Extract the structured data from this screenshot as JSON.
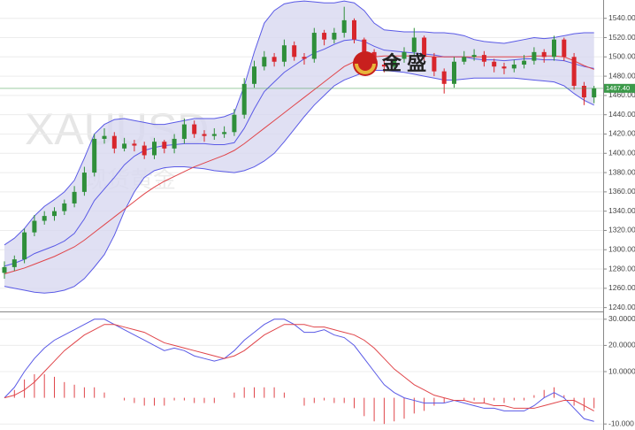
{
  "chart_data": [
    {
      "type": "candlestick",
      "open": [
        1276,
        1282,
        1290,
        1318,
        1330,
        1335,
        1340,
        1348,
        1360,
        1380,
        1415,
        1418,
        1405,
        1410,
        1408,
        1398,
        1412,
        1405,
        1415,
        1430,
        1420,
        1418,
        1420,
        1422,
        1440,
        1472,
        1490,
        1500,
        1495,
        1512,
        1500,
        1498,
        1525,
        1518,
        1525,
        1538,
        1518,
        1505,
        1492,
        1490,
        1498,
        1505,
        1520,
        1500,
        1485,
        1472,
        1495,
        1500,
        1502,
        1495,
        1490,
        1488,
        1492,
        1496,
        1505,
        1500,
        1518,
        1500,
        1470,
        1458
      ],
      "high": [
        1288,
        1294,
        1322,
        1336,
        1340,
        1344,
        1352,
        1366,
        1386,
        1420,
        1426,
        1422,
        1416,
        1414,
        1412,
        1416,
        1414,
        1420,
        1436,
        1434,
        1424,
        1426,
        1428,
        1446,
        1478,
        1496,
        1506,
        1504,
        1518,
        1516,
        1504,
        1530,
        1528,
        1530,
        1552,
        1540,
        1520,
        1508,
        1496,
        1502,
        1510,
        1530,
        1522,
        1504,
        1488,
        1500,
        1506,
        1508,
        1506,
        1498,
        1494,
        1497,
        1502,
        1510,
        1508,
        1522,
        1520,
        1504,
        1474,
        1470
      ],
      "low": [
        1270,
        1278,
        1286,
        1314,
        1326,
        1330,
        1336,
        1344,
        1356,
        1376,
        1410,
        1400,
        1402,
        1402,
        1394,
        1394,
        1400,
        1400,
        1410,
        1416,
        1412,
        1414,
        1416,
        1418,
        1436,
        1468,
        1486,
        1490,
        1490,
        1496,
        1492,
        1494,
        1512,
        1514,
        1520,
        1514,
        1500,
        1486,
        1484,
        1486,
        1494,
        1500,
        1496,
        1480,
        1462,
        1468,
        1492,
        1496,
        1490,
        1484,
        1482,
        1484,
        1488,
        1492,
        1494,
        1496,
        1496,
        1466,
        1450,
        1452
      ],
      "close": [
        1282,
        1290,
        1318,
        1330,
        1335,
        1340,
        1348,
        1360,
        1380,
        1415,
        1418,
        1405,
        1410,
        1408,
        1398,
        1412,
        1405,
        1415,
        1430,
        1420,
        1418,
        1420,
        1422,
        1440,
        1472,
        1490,
        1500,
        1495,
        1512,
        1500,
        1498,
        1525,
        1518,
        1525,
        1538,
        1518,
        1505,
        1492,
        1490,
        1498,
        1505,
        1520,
        1500,
        1485,
        1472,
        1495,
        1500,
        1502,
        1495,
        1490,
        1488,
        1492,
        1496,
        1505,
        1500,
        1518,
        1500,
        1470,
        1458,
        1467.4
      ],
      "up_color": "#2f8f3a",
      "down_color": "#d8262c",
      "series": [
        {
          "color": "#5a5ae6",
          "values": [
            1305,
            1312,
            1322,
            1335,
            1345,
            1352,
            1360,
            1372,
            1395,
            1420,
            1430,
            1435,
            1436,
            1434,
            1432,
            1430,
            1430,
            1432,
            1434,
            1436,
            1436,
            1436,
            1438,
            1442,
            1470,
            1505,
            1535,
            1548,
            1555,
            1557,
            1558,
            1557,
            1556,
            1556,
            1558,
            1556,
            1548,
            1535,
            1528,
            1527,
            1526,
            1526,
            1526,
            1525,
            1525,
            1524,
            1522,
            1518,
            1516,
            1515,
            1514,
            1516,
            1518,
            1520,
            1519,
            1520,
            1522,
            1524,
            1525,
            1525
          ]
        },
        {
          "color": "#5a5ae6",
          "values": [
            1283,
            1286,
            1290,
            1296,
            1300,
            1304,
            1309,
            1317,
            1332,
            1351,
            1363,
            1375,
            1388,
            1397,
            1403,
            1406,
            1408,
            1409,
            1410,
            1410,
            1410,
            1409,
            1409,
            1411,
            1426,
            1446,
            1464,
            1474,
            1484,
            1491,
            1498,
            1504,
            1508,
            1513,
            1517,
            1518,
            1516,
            1511,
            1507,
            1506,
            1505,
            1504,
            1503,
            1502,
            1500,
            1500,
            1500,
            1498,
            1497,
            1497,
            1496,
            1497,
            1498,
            1498,
            1497,
            1497,
            1496,
            1493,
            1490,
            1488
          ]
        },
        {
          "color": "#5a5ae6",
          "values": [
            1262,
            1260,
            1258,
            1256,
            1255,
            1256,
            1258,
            1262,
            1270,
            1282,
            1295,
            1315,
            1340,
            1360,
            1375,
            1382,
            1385,
            1386,
            1386,
            1385,
            1384,
            1382,
            1381,
            1380,
            1382,
            1386,
            1392,
            1400,
            1412,
            1425,
            1438,
            1450,
            1460,
            1470,
            1476,
            1480,
            1484,
            1486,
            1486,
            1485,
            1484,
            1482,
            1480,
            1478,
            1476,
            1476,
            1477,
            1478,
            1478,
            1478,
            1478,
            1478,
            1477,
            1476,
            1475,
            1474,
            1470,
            1462,
            1455,
            1450
          ]
        },
        {
          "color": "#e0454a",
          "values": [
            1275,
            1278,
            1281,
            1285,
            1289,
            1293,
            1298,
            1303,
            1310,
            1318,
            1326,
            1334,
            1342,
            1350,
            1358,
            1365,
            1371,
            1376,
            1381,
            1386,
            1390,
            1394,
            1398,
            1403,
            1410,
            1418,
            1426,
            1434,
            1442,
            1450,
            1458,
            1466,
            1474,
            1482,
            1490,
            1495,
            1498,
            1500,
            1501,
            1501,
            1501,
            1501,
            1501,
            1500,
            1500,
            1500,
            1500,
            1500,
            1500,
            1500,
            1500,
            1500,
            1500,
            1501,
            1501,
            1501,
            1500,
            1496,
            1491,
            1487
          ]
        }
      ],
      "band_fill": "#d8d8f0",
      "ylim": [
        1236,
        1559
      ],
      "yticks": [
        {
          "value": 1240,
          "label": "1240.00"
        },
        {
          "value": 1260,
          "label": "1260.00"
        },
        {
          "value": 1280,
          "label": "1280.00"
        },
        {
          "value": 1300,
          "label": "1300.00"
        },
        {
          "value": 1320,
          "label": "1320.00"
        },
        {
          "value": 1340,
          "label": "1340.00"
        },
        {
          "value": 1360,
          "label": "1360.00"
        },
        {
          "value": 1380,
          "label": "1380.00"
        },
        {
          "value": 1400,
          "label": "1400.00"
        },
        {
          "value": 1420,
          "label": "1420.00"
        },
        {
          "value": 1440,
          "label": "1440.00"
        },
        {
          "value": 1460,
          "label": "1460.00"
        },
        {
          "value": 1480,
          "label": "1480.00"
        },
        {
          "value": 1500,
          "label": "1500.00"
        },
        {
          "value": 1520,
          "label": "1520.00"
        },
        {
          "value": 1540,
          "label": "1540.00"
        }
      ],
      "last_price": {
        "value": 1467.4,
        "label": "1467.40",
        "color": "#3c9a4a"
      },
      "grid": true
    },
    {
      "type": "macd",
      "series": [
        {
          "color": "#5a5ae6",
          "values": [
            0,
            4,
            10,
            15,
            19,
            22,
            24,
            26,
            28,
            30,
            30,
            28,
            26,
            24,
            22,
            20,
            18,
            19,
            18,
            16,
            15,
            14,
            15,
            18,
            22,
            25,
            28,
            30,
            30,
            28,
            25,
            25,
            26,
            24,
            23,
            20,
            15,
            10,
            5,
            2,
            0,
            -1,
            -2,
            -2,
            -2,
            -1,
            -2,
            -3,
            -4,
            -4,
            -5,
            -5,
            -5,
            -3,
            0,
            2,
            0,
            -4,
            -8,
            -9
          ]
        },
        {
          "color": "#e0454a",
          "values": [
            0,
            1,
            3,
            6,
            10,
            14,
            18,
            21,
            24,
            26,
            28,
            28,
            27,
            26,
            25,
            23,
            21,
            20,
            19,
            18,
            17,
            16,
            15,
            16,
            18,
            21,
            24,
            26,
            28,
            28,
            28,
            27,
            27,
            26,
            25,
            24,
            22,
            19,
            15,
            11,
            8,
            5,
            3,
            1,
            0,
            -1,
            -1,
            -2,
            -2,
            -3,
            -3,
            -4,
            -4,
            -4,
            -3,
            -2,
            -1,
            -1,
            -3,
            -5
          ]
        }
      ],
      "histogram": {
        "color": "#e0454a",
        "values": [
          0,
          3,
          7,
          9,
          9,
          8,
          6,
          5,
          4,
          4,
          2,
          0,
          -1,
          -2,
          -3,
          -3,
          -3,
          -1,
          -1,
          -2,
          -2,
          -2,
          0,
          2,
          4,
          4,
          4,
          4,
          2,
          0,
          -3,
          -2,
          -1,
          -2,
          -2,
          -4,
          -7,
          -9,
          -10,
          -9,
          -8,
          -6,
          -5,
          -3,
          -2,
          0,
          -1,
          -1,
          -2,
          -1,
          -2,
          -1,
          -1,
          1,
          3,
          4,
          1,
          -3,
          -5,
          -4
        ]
      },
      "ylim": [
        -12.3,
        32.3
      ],
      "yticks": [
        {
          "value": -10,
          "label": "-10.000"
        },
        {
          "value": 10,
          "label": "10.0000"
        },
        {
          "value": 20,
          "label": "20.0000"
        },
        {
          "value": 30,
          "label": "30.0000"
        }
      ],
      "grid": true
    }
  ],
  "watermark": {
    "symbol": "XAUUSD",
    "name": "现货黄金"
  },
  "logo": "金 盛"
}
